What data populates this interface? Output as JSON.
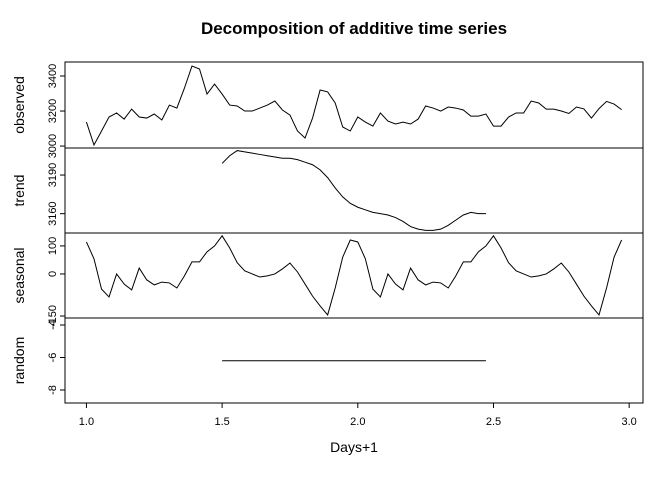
{
  "chart_data": {
    "type": "line",
    "title": "Decomposition of additive time series",
    "xlabel": "Days+1",
    "x": [
      1,
      1.0278,
      1.0556,
      1.0833,
      1.1111,
      1.1389,
      1.1667,
      1.1944,
      1.2222,
      1.25,
      1.2778,
      1.3056,
      1.3333,
      1.3611,
      1.3889,
      1.4167,
      1.4444,
      1.4722,
      1.5,
      1.5278,
      1.5556,
      1.5833,
      1.6111,
      1.6389,
      1.6667,
      1.6944,
      1.7222,
      1.75,
      1.7778,
      1.8056,
      1.8333,
      1.8611,
      1.8889,
      1.9167,
      1.9444,
      1.9722,
      2,
      2.0278,
      2.0556,
      2.0833,
      2.1111,
      2.1389,
      2.1667,
      2.1944,
      2.2222,
      2.25,
      2.2778,
      2.3056,
      2.3333,
      2.3611,
      2.3889,
      2.4167,
      2.4444,
      2.4722,
      2.5,
      2.5278,
      2.5556,
      2.5833,
      2.6111,
      2.6389,
      2.6667,
      2.6944,
      2.7222,
      2.75,
      2.7778,
      2.8056,
      2.8333,
      2.8611,
      2.8889,
      2.9167,
      2.9444,
      2.9722
    ],
    "xlim": [
      0.921,
      3.051
    ],
    "xticks": [
      {
        "value": 1,
        "label": "1.0"
      },
      1.5,
      {
        "value": 2,
        "label": "2.0"
      },
      2.5,
      {
        "value": 3,
        "label": "3.0"
      }
    ],
    "color": "#000000",
    "panels": [
      {
        "ylabel": "observed",
        "ylim": [
          2989,
          3480
        ],
        "yticks": [
          3000,
          3200,
          3400
        ],
        "values": [
          3137,
          3006,
          3086,
          3166,
          3189,
          3154,
          3211,
          3166,
          3160,
          3183,
          3149,
          3234,
          3217,
          3331,
          3457,
          3440,
          3297,
          3354,
          3297,
          3234,
          3229,
          3200,
          3200,
          3217,
          3234,
          3257,
          3206,
          3177,
          3086,
          3046,
          3160,
          3320,
          3309,
          3246,
          3109,
          3086,
          3166,
          3137,
          3114,
          3189,
          3143,
          3126,
          3137,
          3126,
          3154,
          3229,
          3217,
          3200,
          3223,
          3217,
          3206,
          3171,
          3171,
          3183,
          3114,
          3114,
          3166,
          3189,
          3189,
          3257,
          3246,
          3211,
          3211,
          3200,
          3186,
          3223,
          3212,
          3160,
          3214,
          3255,
          3240,
          3208
        ]
      },
      {
        "ylabel": "trend",
        "ylim": [
          3145,
          3211
        ],
        "yticks": [
          3160,
          3190
        ],
        "values": [
          null,
          null,
          null,
          null,
          null,
          null,
          null,
          null,
          null,
          null,
          null,
          null,
          null,
          null,
          null,
          null,
          null,
          null,
          3199,
          3205,
          3209,
          3208,
          3207,
          3206,
          3205,
          3204,
          3203,
          3203,
          3202,
          3200,
          3198,
          3194,
          3188,
          3180,
          3173,
          3168,
          3165,
          3163,
          3161,
          3160,
          3159,
          3157,
          3154,
          3150,
          3148,
          3147,
          3147,
          3148,
          3151,
          3155,
          3159,
          3161,
          3160,
          3160,
          null,
          null,
          null,
          null,
          null,
          null,
          null,
          null,
          null,
          null,
          null,
          null,
          null,
          null,
          null,
          null,
          null,
          null
        ]
      },
      {
        "ylabel": "seasonal",
        "ylim": [
          -157,
          146
        ],
        "yticks": [
          -150,
          0,
          100
        ],
        "values": [
          114,
          54,
          -54,
          -82,
          0,
          -36,
          -57,
          21,
          -21,
          -39,
          -29,
          -32,
          -50,
          -7,
          43,
          43,
          79,
          100,
          136,
          93,
          40,
          11,
          0,
          -11,
          -7,
          0,
          18,
          39,
          7,
          -36,
          -79,
          -114,
          -146,
          -50,
          60,
          121,
          114,
          54,
          -54,
          -82,
          0,
          -36,
          -57,
          21,
          -21,
          -39,
          -29,
          -32,
          -50,
          -7,
          43,
          43,
          79,
          100,
          136,
          93,
          40,
          11,
          0,
          -11,
          -7,
          0,
          18,
          39,
          7,
          -36,
          -79,
          -114,
          -146,
          -50,
          60,
          121
        ]
      },
      {
        "ylabel": "random",
        "ylim": [
          -8.8,
          -3.57
        ],
        "yticks": [
          -8,
          -6,
          -4
        ],
        "values": [
          null,
          null,
          null,
          null,
          null,
          null,
          null,
          null,
          null,
          null,
          null,
          null,
          null,
          null,
          null,
          null,
          null,
          null,
          -6.2,
          -6.2,
          -6.2,
          -6.2,
          -6.2,
          -6.2,
          -6.2,
          -6.2,
          -6.2,
          -6.2,
          -6.2,
          -6.2,
          -6.2,
          -6.2,
          -6.2,
          -6.2,
          -6.2,
          -6.2,
          -6.2,
          -6.2,
          -6.2,
          -6.2,
          -6.2,
          -6.2,
          -6.2,
          -6.2,
          -6.2,
          -6.2,
          -6.2,
          -6.2,
          -6.2,
          -6.2,
          -6.2,
          -6.2,
          -6.2,
          -6.2,
          null,
          null,
          null,
          null,
          null,
          null,
          null,
          null,
          null,
          null,
          null,
          null,
          null,
          null,
          null,
          null,
          null,
          null
        ]
      }
    ]
  }
}
